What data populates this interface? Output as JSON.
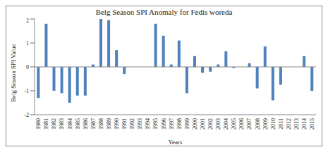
{
  "chart_data": {
    "type": "bar",
    "title": "Belg Season SPI Anomaly for Fedis woreda",
    "x_label": "Years",
    "y_label": "Belg Season SPI Value",
    "categories": [
      "1980",
      "1981",
      "1982",
      "1983",
      "1984",
      "1985",
      "1986",
      "1987",
      "1988",
      "1989",
      "1990",
      "1991",
      "1992",
      "1993",
      "1994",
      "1995",
      "1996",
      "1997",
      "1998",
      "1999",
      "2000",
      "2001",
      "2002",
      "2003",
      "2004",
      "2005",
      "2006",
      "2007",
      "2008",
      "2009",
      "2010",
      "2011",
      "2012",
      "2013",
      "2014",
      "2015"
    ],
    "values": [
      -1.3,
      1.8,
      -1.0,
      -1.1,
      -1.5,
      -1.2,
      -1.2,
      0.1,
      2.0,
      1.95,
      0.7,
      -0.3,
      0,
      0,
      0,
      1.8,
      1.3,
      0.1,
      1.1,
      -1.1,
      0.45,
      -0.25,
      -0.2,
      0.1,
      0.65,
      -0.05,
      0,
      0.15,
      -0.9,
      0.85,
      -1.4,
      -0.75,
      0,
      0,
      0.45,
      -1.0
    ],
    "color": "#4f81bd",
    "ylim": [
      -2,
      2
    ],
    "yticks": [
      -2,
      -1,
      0,
      1,
      2
    ],
    "grid": false
  }
}
